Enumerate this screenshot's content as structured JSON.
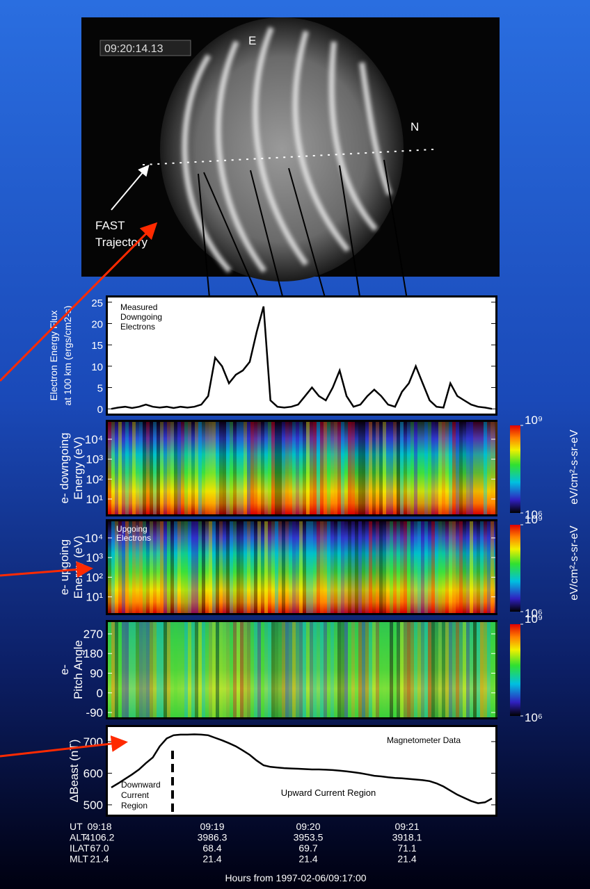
{
  "image": {
    "timestamp": "09:20:14.13",
    "east": "E",
    "north": "N",
    "trajectory_label": [
      "FAST",
      "Trajectory"
    ]
  },
  "chart_data": [
    {
      "type": "line",
      "ylabel": [
        "Electron Energy Flux",
        "at 100 km (ergs/cm2-s)"
      ],
      "annotation": [
        "Measured",
        "Downgoing",
        "Electrons"
      ],
      "ylim": [
        -1.1,
        26.1
      ],
      "yticks": [
        0,
        5,
        10,
        15,
        20,
        25
      ],
      "color": "#000000",
      "values": [
        0,
        0.3,
        0.5,
        0.2,
        0.5,
        1,
        0.5,
        0.3,
        0.5,
        0.2,
        0.5,
        0.3,
        0.5,
        1,
        3,
        12,
        10,
        6,
        8,
        9,
        11,
        18,
        24,
        2,
        0.5,
        0.3,
        0.5,
        1,
        3,
        5,
        3,
        2,
        5,
        9,
        3,
        0.5,
        1,
        3,
        4.5,
        3,
        1,
        0.5,
        4,
        6,
        10,
        6,
        2,
        0.5,
        0.3,
        6,
        3,
        2,
        1,
        0.5,
        0.3,
        0
      ]
    },
    {
      "type": "heatmap",
      "ylabel": [
        "e- downgoing",
        "Energy (eV)"
      ],
      "log": true,
      "ylim": [
        1.7,
        74000
      ],
      "yticks": [
        {
          "value": 10000,
          "label": "10⁴"
        },
        {
          "value": 1000,
          "label": "10³"
        },
        {
          "value": 100,
          "label": "10²"
        },
        {
          "value": 10,
          "label": "10¹"
        }
      ],
      "clim": [
        1000000,
        1000000000
      ],
      "cticks": [
        {
          "value": 1000000000,
          "label": "10⁹"
        },
        {
          "value": 1000000,
          "label": "10⁶"
        }
      ]
    },
    {
      "type": "heatmap",
      "ylabel": [
        "e- upgoing",
        "Energy (eV)"
      ],
      "annotation": [
        "Upgoing",
        "Electrons"
      ],
      "log": true,
      "ylim": [
        1.5,
        70000
      ],
      "yticks": [
        {
          "value": 10000,
          "label": "10⁴"
        },
        {
          "value": 1000,
          "label": "10³"
        },
        {
          "value": 100,
          "label": "10²"
        },
        {
          "value": 10,
          "label": "10¹"
        }
      ],
      "clim": [
        1000000,
        1000000000
      ],
      "cticks": [
        {
          "value": 1000000000,
          "label": "10⁹"
        },
        {
          "value": 1000000,
          "label": "10⁶"
        }
      ]
    },
    {
      "type": "heatmap",
      "ylabel": [
        "e-",
        "Pitch Angle"
      ],
      "ylim": [
        -112,
        324
      ],
      "yticks": [
        270,
        180,
        90,
        0,
        -90
      ],
      "clim": [
        1000000,
        1000000000
      ],
      "cticks": [
        {
          "value": 1000000000,
          "label": "10⁹"
        },
        {
          "value": 1000000,
          "label": "10⁶"
        }
      ]
    },
    {
      "type": "line",
      "ylabel": [
        "ΔBeast (nT)"
      ],
      "annotation": [
        "Magnetometer Data"
      ],
      "annotation2": [
        "Downward",
        "Current",
        "Region"
      ],
      "annotation3": [
        "Upward Current Region"
      ],
      "ylim": [
        469,
        746
      ],
      "yticks": [
        500,
        600,
        700
      ],
      "color": "#000000",
      "values": [
        555,
        568,
        582,
        596,
        612,
        632,
        650,
        685,
        710,
        720,
        722,
        722,
        723,
        722,
        720,
        712,
        704,
        695,
        685,
        672,
        658,
        640,
        625,
        620,
        618,
        616,
        615,
        614,
        613,
        612,
        612,
        611,
        610,
        608,
        606,
        603,
        600,
        596,
        592,
        590,
        587,
        585,
        584,
        582,
        580,
        578,
        575,
        568,
        558,
        545,
        532,
        522,
        512,
        505,
        508,
        520
      ]
    }
  ],
  "colorbar_units": [
    "eV/cm²-s-sr-eV",
    "eV/cm²-s-sr-eV"
  ],
  "table": {
    "rows": [
      [
        "UT",
        "09:18",
        "09:19",
        "09:20",
        "09:21"
      ],
      [
        "ALT",
        "4106.2",
        "3986.3",
        "3953.5",
        "3918.1"
      ],
      [
        "ILAT",
        "67.0",
        "68.4",
        "69.7",
        "71.1"
      ],
      [
        "MLT",
        "21.4",
        "21.4",
        "21.4",
        "21.4"
      ]
    ],
    "footer": "Hours from 1997-02-06/09:17:00"
  }
}
